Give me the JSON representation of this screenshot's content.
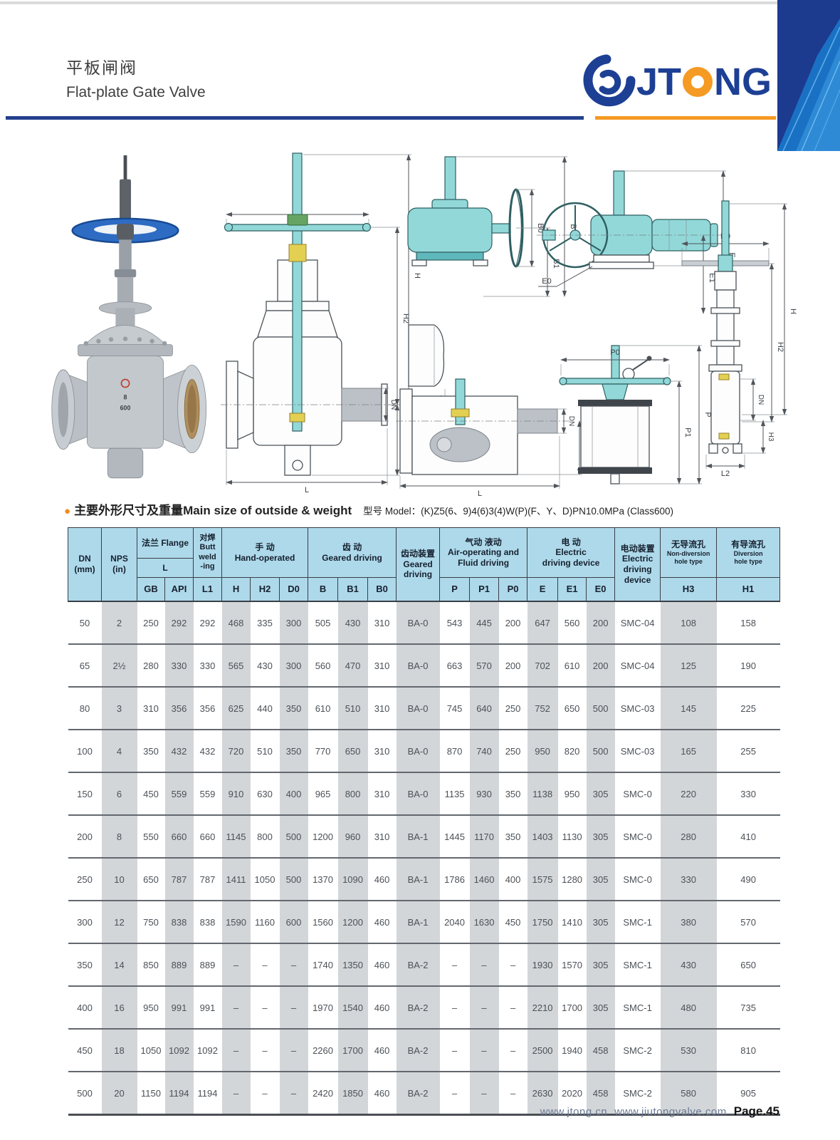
{
  "header": {
    "title_zh": "平板闸阀",
    "title_en": "Flat-plate Gate Valve",
    "brand_left": "JT",
    "brand_right": "NG"
  },
  "section_title": {
    "bullet": "●",
    "zh": "主要外形尺寸及重量",
    "en": " Main size of outside & weight",
    "model": "型号 Model：(K)Z5(6、9)4(6)3(4)W(P)(F、Y、D)PN10.0MPa (Class600)"
  },
  "drawings": {
    "photo": {
      "mark_top": "8",
      "mark_bottom": "600"
    },
    "hand_section": {
      "d0": "D0",
      "h": "H",
      "h2": "H2",
      "dn": "DN",
      "h1": "H1",
      "l": "L"
    },
    "gear": {
      "b0": "B0",
      "b1": "B1",
      "b": "B",
      "l1": "L1",
      "dn": "DN",
      "h1": "H1",
      "l": "L"
    },
    "electric": {
      "e0": "E0",
      "e1": "E1",
      "e": "E"
    },
    "pneumatic": {
      "p0": "P0",
      "p1": "P1",
      "p": "P"
    },
    "side": {
      "d0": "D0",
      "h": "H",
      "h2": "H2",
      "dn": "DN",
      "h3": "H3",
      "l2": "L2"
    }
  },
  "table": {
    "header": {
      "dn": "DN\n(mm)",
      "nps": "NPS\n(in)",
      "flange": "法兰 Flange",
      "flange_l": "L",
      "butt": "对焊\nButt\nweld\n-ing",
      "hand": "手 动\nHand-operated",
      "geared": "齿  动\nGeared driving",
      "geared_device": "齿动装置\nGeared\ndriving",
      "air": "气动 液动\nAir-operating and\nFluid driving",
      "electric": "电  动\nElectric\ndriving device",
      "electric_device": "电动装置\nElectric\ndriving\ndevice",
      "nondiv_zh": "无导流孔",
      "nondiv_en": "Non-diversion\nhole type",
      "div_zh": "有导流孔",
      "div_en": "Diversion\nhole type",
      "sub": [
        "GB",
        "API",
        "L1",
        "H",
        "H2",
        "D0",
        "B",
        "B1",
        "B0",
        "P",
        "P1",
        "P0",
        "E",
        "E1",
        "E0",
        "H3",
        "H1"
      ]
    },
    "col_keys": [
      "dn",
      "nps",
      "gb",
      "api",
      "l1",
      "h",
      "h2",
      "d0",
      "b",
      "b1",
      "b0",
      "ba",
      "p",
      "p1",
      "p0",
      "e",
      "e1",
      "e0",
      "smc",
      "h3",
      "h1"
    ],
    "rows": [
      [
        "50",
        "2",
        "250",
        "292",
        "292",
        "468",
        "335",
        "300",
        "505",
        "430",
        "310",
        "BA-0",
        "543",
        "445",
        "200",
        "647",
        "560",
        "200",
        "SMC-04",
        "108",
        "158"
      ],
      [
        "65",
        "2½",
        "280",
        "330",
        "330",
        "565",
        "430",
        "300",
        "560",
        "470",
        "310",
        "BA-0",
        "663",
        "570",
        "200",
        "702",
        "610",
        "200",
        "SMC-04",
        "125",
        "190"
      ],
      [
        "80",
        "3",
        "310",
        "356",
        "356",
        "625",
        "440",
        "350",
        "610",
        "510",
        "310",
        "BA-0",
        "745",
        "640",
        "250",
        "752",
        "650",
        "500",
        "SMC-03",
        "145",
        "225"
      ],
      [
        "100",
        "4",
        "350",
        "432",
        "432",
        "720",
        "510",
        "350",
        "770",
        "650",
        "310",
        "BA-0",
        "870",
        "740",
        "250",
        "950",
        "820",
        "500",
        "SMC-03",
        "165",
        "255"
      ],
      [
        "150",
        "6",
        "450",
        "559",
        "559",
        "910",
        "630",
        "400",
        "965",
        "800",
        "310",
        "BA-0",
        "1135",
        "930",
        "350",
        "1138",
        "950",
        "305",
        "SMC-0",
        "220",
        "330"
      ],
      [
        "200",
        "8",
        "550",
        "660",
        "660",
        "1145",
        "800",
        "500",
        "1200",
        "960",
        "310",
        "BA-1",
        "1445",
        "1170",
        "350",
        "1403",
        "1130",
        "305",
        "SMC-0",
        "280",
        "410"
      ],
      [
        "250",
        "10",
        "650",
        "787",
        "787",
        "1411",
        "1050",
        "500",
        "1370",
        "1090",
        "460",
        "BA-1",
        "1786",
        "1460",
        "400",
        "1575",
        "1280",
        "305",
        "SMC-0",
        "330",
        "490"
      ],
      [
        "300",
        "12",
        "750",
        "838",
        "838",
        "1590",
        "1160",
        "600",
        "1560",
        "1200",
        "460",
        "BA-1",
        "2040",
        "1630",
        "450",
        "1750",
        "1410",
        "305",
        "SMC-1",
        "380",
        "570"
      ],
      [
        "350",
        "14",
        "850",
        "889",
        "889",
        "–",
        "–",
        "–",
        "1740",
        "1350",
        "460",
        "BA-2",
        "–",
        "–",
        "–",
        "1930",
        "1570",
        "305",
        "SMC-1",
        "430",
        "650"
      ],
      [
        "400",
        "16",
        "950",
        "991",
        "991",
        "–",
        "–",
        "–",
        "1970",
        "1540",
        "460",
        "BA-2",
        "–",
        "–",
        "–",
        "2210",
        "1700",
        "305",
        "SMC-1",
        "480",
        "735"
      ],
      [
        "450",
        "18",
        "1050",
        "1092",
        "1092",
        "–",
        "–",
        "–",
        "2260",
        "1700",
        "460",
        "BA-2",
        "–",
        "–",
        "–",
        "2500",
        "1940",
        "458",
        "SMC-2",
        "530",
        "810"
      ],
      [
        "500",
        "20",
        "1150",
        "1194",
        "1194",
        "–",
        "–",
        "–",
        "2420",
        "1850",
        "460",
        "BA-2",
        "–",
        "–",
        "–",
        "2630",
        "2020",
        "458",
        "SMC-2",
        "580",
        "905"
      ]
    ]
  },
  "footer": {
    "url1": "www.jtong.cn",
    "url2": "www.jiutongvalve.com",
    "page": "Page.45"
  },
  "colors": {
    "brand_blue": "#1d3f94",
    "accent_orange": "#f59a23",
    "table_header_bg": "#aed9ea",
    "stripe_gray": "#d3d6d9",
    "band_navy": "#1c3a8e",
    "band_light_blue": "#2a8ada"
  }
}
